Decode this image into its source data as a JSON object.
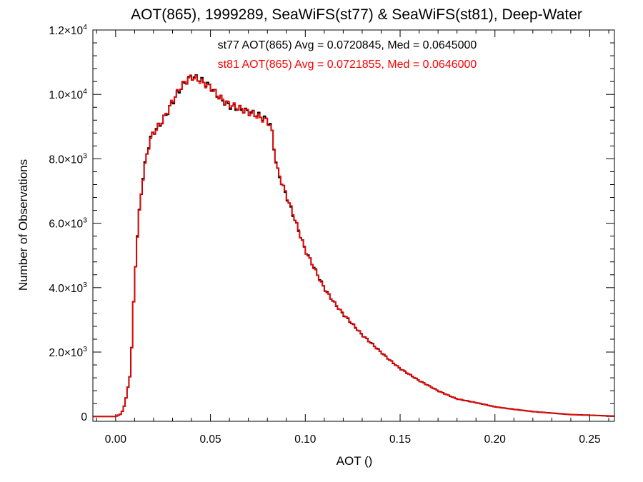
{
  "chart_data": {
    "type": "line",
    "style": "histogram-step",
    "title": "AOT(865), 1999289, SeaWiFS(st77) & SeaWiFS(st81), Deep-Water",
    "xlabel": "AOT ()",
    "ylabel": "Number of Observations",
    "xlim": [
      -0.012,
      0.263
    ],
    "ylim": [
      -150,
      12000
    ],
    "x_ticks": [
      {
        "value": 0.0,
        "label": "0.00"
      },
      {
        "value": 0.05,
        "label": "0.05"
      },
      {
        "value": 0.1,
        "label": "0.10"
      },
      {
        "value": 0.15,
        "label": "0.15"
      },
      {
        "value": 0.2,
        "label": "0.20"
      },
      {
        "value": 0.25,
        "label": "0.25"
      }
    ],
    "y_ticks": [
      {
        "value": 0,
        "mantissa": "0",
        "exp": ""
      },
      {
        "value": 2000,
        "mantissa": "2.0×10",
        "exp": "3"
      },
      {
        "value": 4000,
        "mantissa": "4.0×10",
        "exp": "3"
      },
      {
        "value": 6000,
        "mantissa": "6.0×10",
        "exp": "3"
      },
      {
        "value": 8000,
        "mantissa": "8.0×10",
        "exp": "3"
      },
      {
        "value": 10000,
        "mantissa": "1.0×10",
        "exp": "4"
      },
      {
        "value": 12000,
        "mantissa": "1.2×10",
        "exp": "4"
      }
    ],
    "annotations": [
      {
        "text": "st77 AOT(865) Avg = 0.0720845, Med = 0.0645000",
        "color": "#000000"
      },
      {
        "text": "st81 AOT(865) Avg = 0.0721855, Med = 0.0646000",
        "color": "#ff0000"
      }
    ],
    "x_curve": [
      -0.012,
      0.0,
      0.003,
      0.005,
      0.008,
      0.01,
      0.012,
      0.014,
      0.016,
      0.018,
      0.02,
      0.025,
      0.03,
      0.035,
      0.04,
      0.045,
      0.05,
      0.055,
      0.06,
      0.065,
      0.07,
      0.075,
      0.08,
      0.082,
      0.085,
      0.09,
      0.095,
      0.1,
      0.11,
      0.12,
      0.13,
      0.14,
      0.15,
      0.16,
      0.17,
      0.18,
      0.2,
      0.22,
      0.24,
      0.263
    ],
    "grain": [
      0,
      0,
      1,
      -1,
      1,
      0,
      -1,
      1,
      0,
      -1,
      1,
      0,
      -1,
      1,
      0,
      -1,
      1,
      0,
      -1,
      1,
      0,
      -1,
      1,
      0,
      -1,
      1,
      0,
      0,
      1,
      0,
      -1,
      0,
      1,
      0,
      0,
      0,
      0,
      0,
      0,
      0
    ],
    "series": [
      {
        "name": "st77",
        "color": "#000000",
        "values": [
          0,
          0,
          80,
          400,
          1400,
          4200,
          6000,
          7200,
          8000,
          8600,
          8900,
          9300,
          9800,
          10200,
          10450,
          10400,
          10300,
          10000,
          9700,
          9500,
          9350,
          9300,
          9250,
          9100,
          7800,
          6900,
          6000,
          5100,
          4000,
          3200,
          2500,
          2000,
          1500,
          1100,
          800,
          550,
          300,
          150,
          60,
          10
        ]
      },
      {
        "name": "st81",
        "color": "#ff0000",
        "values": [
          0,
          0,
          80,
          400,
          1400,
          4200,
          6000,
          7200,
          8000,
          8600,
          8900,
          9300,
          9800,
          10200,
          10450,
          10400,
          10300,
          10000,
          9700,
          9500,
          9350,
          9300,
          9250,
          9100,
          7800,
          6900,
          6000,
          5100,
          4000,
          3200,
          2500,
          2000,
          1500,
          1100,
          800,
          550,
          300,
          150,
          60,
          10
        ]
      }
    ]
  }
}
